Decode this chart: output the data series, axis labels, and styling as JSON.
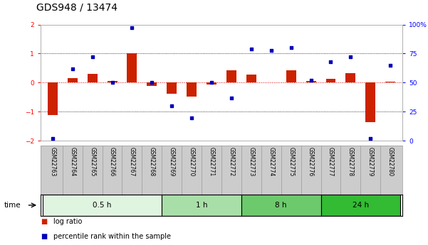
{
  "title": "GDS948 / 13474",
  "samples": [
    "GSM22763",
    "GSM22764",
    "GSM22765",
    "GSM22766",
    "GSM22767",
    "GSM22768",
    "GSM22769",
    "GSM22770",
    "GSM22771",
    "GSM22772",
    "GSM22773",
    "GSM22774",
    "GSM22775",
    "GSM22776",
    "GSM22777",
    "GSM22778",
    "GSM22779",
    "GSM22780"
  ],
  "log_ratio": [
    -1.1,
    0.15,
    0.3,
    0.05,
    1.0,
    -0.12,
    -0.38,
    -0.48,
    -0.07,
    0.42,
    0.28,
    0.02,
    0.43,
    0.05,
    0.14,
    0.33,
    -1.35,
    0.04
  ],
  "percentile": [
    2,
    62,
    72,
    50,
    97,
    50,
    30,
    20,
    50,
    37,
    79,
    78,
    80,
    52,
    68,
    72,
    2,
    65
  ],
  "groups": [
    {
      "label": "0.5 h",
      "start": 0,
      "end": 6,
      "color": "#e0f5e0"
    },
    {
      "label": "1 h",
      "start": 6,
      "end": 10,
      "color": "#a8dfa8"
    },
    {
      "label": "8 h",
      "start": 10,
      "end": 14,
      "color": "#6cc96c"
    },
    {
      "label": "24 h",
      "start": 14,
      "end": 18,
      "color": "#33bb33"
    }
  ],
  "bar_color": "#cc2200",
  "dot_color": "#0000bb",
  "ylim_left": [
    -2,
    2
  ],
  "ylim_right": [
    0,
    100
  ],
  "yticks_left": [
    -2,
    -1,
    0,
    1,
    2
  ],
  "yticks_right": [
    0,
    25,
    50,
    75,
    100
  ],
  "ytick_labels_right": [
    "0",
    "25",
    "50",
    "75",
    "100%"
  ],
  "zero_line_color": "#dd0000",
  "grid_color": "#000000",
  "bg_color": "#ffffff",
  "title_fontsize": 10,
  "tick_label_fontsize": 6.5,
  "bar_width": 0.5,
  "sample_label_bg": "#cccccc",
  "sample_label_border": "#999999"
}
